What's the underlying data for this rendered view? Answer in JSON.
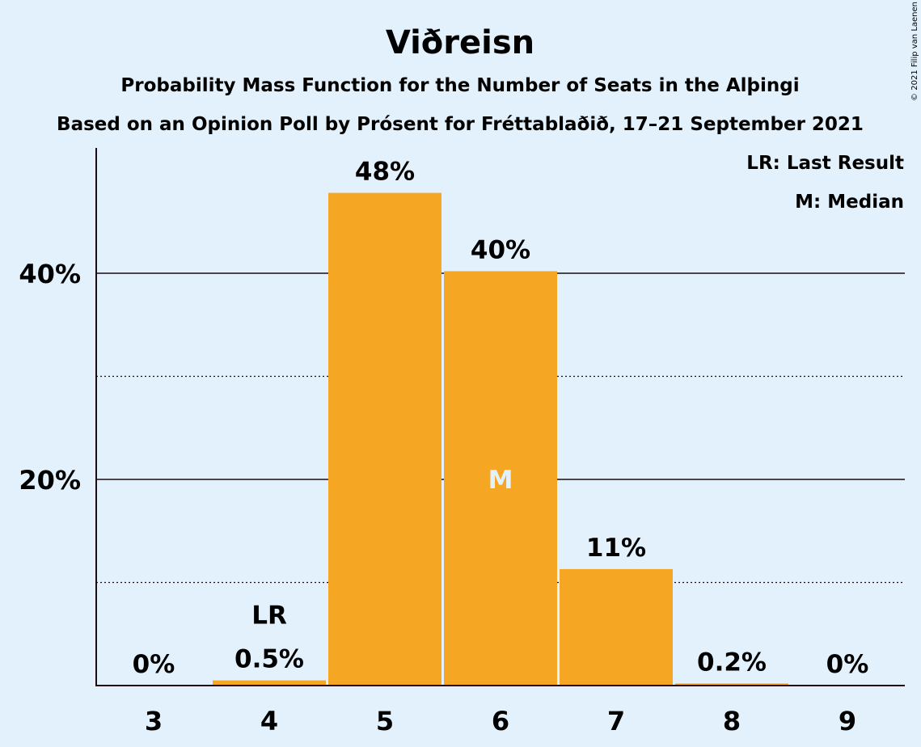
{
  "chart_data": {
    "type": "bar",
    "title": "Viðreisn",
    "subtitle_1": "Probability Mass Function for the Number of Seats in the Alþingi",
    "subtitle_2": "Based on an Opinion Poll by Prósent for Fréttablaðið, 17–21 September 2021",
    "categories": [
      "3",
      "4",
      "5",
      "6",
      "7",
      "8",
      "9"
    ],
    "values": [
      0,
      0.5,
      47.8,
      40.2,
      11.3,
      0.2,
      0
    ],
    "value_labels": [
      "0%",
      "0.5%",
      "48%",
      "40%",
      "11%",
      "0.2%",
      "0%"
    ],
    "y_ticks": [
      {
        "value": 20,
        "label": "20%"
      },
      {
        "value": 40,
        "label": "40%"
      }
    ],
    "minor_grid": [
      10,
      30
    ],
    "ylim": [
      0,
      52
    ],
    "last_result_category": "4",
    "last_result_mark": "LR",
    "median_category": "6",
    "median_mark": "M",
    "legend": [
      "LR: Last Result",
      "M: Median"
    ],
    "legend_position": "top-right",
    "bar_color": "#f5a623",
    "background_color": "#e3f1fd",
    "text_color": "#1a0c12"
  },
  "copyright": "© 2021 Filip van Laenen"
}
